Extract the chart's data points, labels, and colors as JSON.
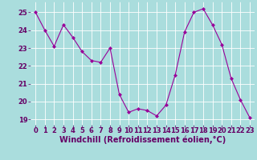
{
  "x": [
    0,
    1,
    2,
    3,
    4,
    5,
    6,
    7,
    8,
    9,
    10,
    11,
    12,
    13,
    14,
    15,
    16,
    17,
    18,
    19,
    20,
    21,
    22,
    23
  ],
  "y": [
    25.0,
    24.0,
    23.1,
    24.3,
    23.6,
    22.8,
    22.3,
    22.2,
    23.0,
    20.4,
    19.4,
    19.6,
    19.5,
    19.2,
    19.8,
    21.5,
    23.9,
    25.0,
    25.2,
    24.3,
    23.2,
    21.3,
    20.1,
    19.1
  ],
  "line_color": "#990099",
  "marker": "D",
  "marker_size": 2,
  "bg_color": "#aadddd",
  "grid_color": "#ffffff",
  "xlabel": "Windchill (Refroidissement éolien,°C)",
  "xlabel_color": "#660066",
  "xlabel_fontsize": 7,
  "tick_color": "#660066",
  "tick_fontsize": 6,
  "ylim": [
    18.7,
    25.6
  ],
  "xlim": [
    -0.5,
    23.5
  ],
  "yticks": [
    19,
    20,
    21,
    22,
    23,
    24,
    25
  ],
  "xticks": [
    0,
    1,
    2,
    3,
    4,
    5,
    6,
    7,
    8,
    9,
    10,
    11,
    12,
    13,
    14,
    15,
    16,
    17,
    18,
    19,
    20,
    21,
    22,
    23
  ]
}
